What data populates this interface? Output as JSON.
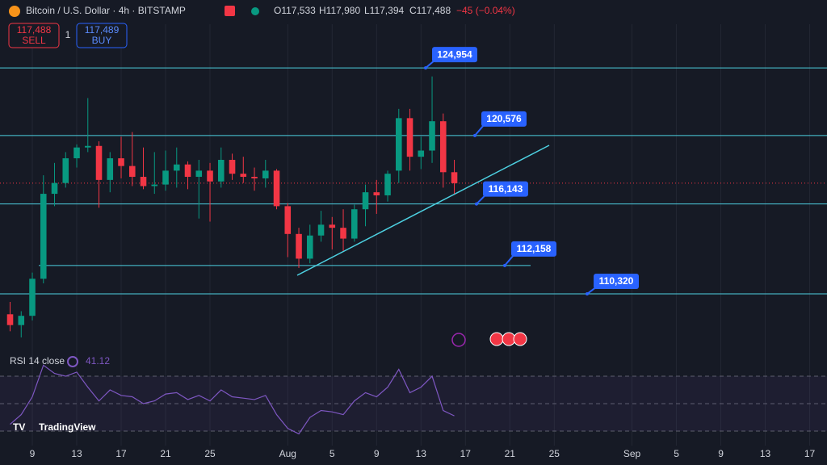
{
  "chart_data": {
    "type": "candlestick",
    "header": {
      "symbol": "Bitcoin / U.S. Dollar · 4h · BITSTAMP",
      "open": "O117,533",
      "high": "H117,980",
      "low": "L117,394",
      "close": "C117,488",
      "change": "−45 (−0.04%)"
    },
    "sell": {
      "value": 117488,
      "label": "117,488"
    },
    "sell_text": "SELL",
    "quantity": "1",
    "buy": {
      "value": 117489,
      "label": "117,489"
    },
    "buy_text": "BUY",
    "x": [
      -2,
      -1,
      0,
      1,
      2,
      3,
      4,
      5,
      6,
      7,
      8,
      9,
      10,
      11,
      12,
      13,
      14,
      15,
      16,
      17,
      18,
      19,
      20,
      21,
      22,
      23,
      24,
      25,
      26,
      27,
      28,
      29,
      30,
      31,
      32,
      33,
      34,
      35,
      36,
      37,
      38
    ],
    "open": [
      109000,
      108300,
      108900,
      111300,
      116800,
      117500,
      119100,
      119800,
      119900,
      117700,
      119100,
      118600,
      117900,
      117300,
      117400,
      118300,
      118700,
      117900,
      118300,
      117600,
      119000,
      118100,
      117900,
      117800,
      118300,
      116000,
      114200,
      112600,
      114100,
      114800,
      114600,
      113900,
      115800,
      116900,
      116700,
      118300,
      121700,
      119200,
      119600,
      121500,
      118200
    ],
    "high": [
      109800,
      109200,
      111700,
      118000,
      118800,
      119500,
      120000,
      123000,
      120200,
      119500,
      120500,
      120800,
      119800,
      119500,
      119600,
      119800,
      118900,
      119000,
      118800,
      119800,
      119400,
      119200,
      118500,
      119000,
      118400,
      116200,
      114600,
      114800,
      115700,
      115300,
      115800,
      116100,
      117400,
      117700,
      118300,
      122300,
      122300,
      120500,
      124400,
      122000,
      119000
    ],
    "low": [
      107900,
      107500,
      108600,
      111000,
      116000,
      117200,
      118500,
      119500,
      115900,
      116900,
      117800,
      117300,
      117100,
      116800,
      117000,
      117200,
      117100,
      115200,
      115000,
      117200,
      117700,
      117500,
      117000,
      117200,
      115800,
      112700,
      112000,
      112300,
      113700,
      113200,
      113100,
      113700,
      114700,
      115500,
      116300,
      117500,
      118300,
      118400,
      118800,
      117200,
      116800
    ],
    "close": [
      108300,
      108900,
      111300,
      116800,
      117500,
      119100,
      119800,
      119900,
      117700,
      119100,
      118600,
      117900,
      117300,
      117400,
      118300,
      118700,
      117900,
      118300,
      117600,
      119000,
      118100,
      117900,
      117800,
      118300,
      116000,
      114200,
      112600,
      114100,
      114800,
      114600,
      113900,
      115800,
      116900,
      116700,
      118100,
      121700,
      119200,
      119600,
      121500,
      118200,
      117488
    ],
    "up_color": "#089981",
    "down_color": "#f23645",
    "xlim": [
      -2.91,
      71.56
    ],
    "ylim": [
      99240,
      129350
    ],
    "xticks": [
      {
        "value": 0,
        "label": "9"
      },
      {
        "value": 4,
        "label": "13"
      },
      {
        "value": 8,
        "label": "17"
      },
      {
        "value": 12,
        "label": "21"
      },
      {
        "value": 16,
        "label": "25"
      },
      {
        "value": 23,
        "label": "Aug"
      },
      {
        "value": 27,
        "label": "5"
      },
      {
        "value": 31,
        "label": "9"
      },
      {
        "value": 35,
        "label": "13"
      },
      {
        "value": 39,
        "label": "17"
      },
      {
        "value": 43,
        "label": "21"
      },
      {
        "value": 47,
        "label": "25"
      },
      {
        "value": 54,
        "label": "Sep"
      },
      {
        "value": 58,
        "label": "5"
      },
      {
        "value": 62,
        "label": "9"
      },
      {
        "value": 66,
        "label": "13"
      },
      {
        "value": 70,
        "label": "17"
      }
    ],
    "grid": true,
    "levels": [
      {
        "value": 124954,
        "label": "124,954"
      },
      {
        "value": 120576,
        "label": "120,576"
      },
      {
        "value": 116143,
        "label": "116,143"
      },
      {
        "value": 112158,
        "label": "112,158"
      },
      {
        "value": 110320,
        "label": "110,320"
      }
    ],
    "level_color": "#4dd0e1",
    "rsi": {
      "title": "RSI 14 close",
      "color": "#7e57c2",
      "ylim": [
        20.6,
        85.3
      ],
      "bands": [
        70,
        50,
        30
      ],
      "values": [
        35,
        42,
        55,
        78,
        72,
        70,
        73,
        62,
        52,
        60,
        56,
        55,
        50,
        52,
        57,
        58,
        53,
        56,
        52,
        60,
        55,
        54,
        53,
        56,
        42,
        32,
        28,
        40,
        45,
        44,
        42,
        52,
        58,
        55,
        62,
        75,
        58,
        62,
        70,
        45,
        41.12
      ]
    },
    "brand": "TradingView"
  }
}
